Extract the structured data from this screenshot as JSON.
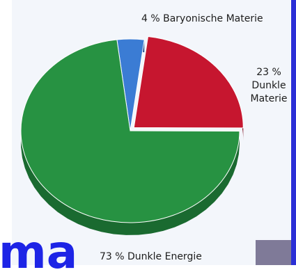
{
  "chart_data": {
    "type": "pie",
    "style": "3d",
    "slices": [
      {
        "label": "Baryonische Materie",
        "value": 4,
        "value_text": "4 %",
        "color": "#3b7cd4",
        "side_color": "#254f8e"
      },
      {
        "label": "Dunkle Materie",
        "value": 23,
        "value_text": "23 %",
        "color": "#c6162f",
        "side_color": "#7d0d1e"
      },
      {
        "label": "Dunkle Energie",
        "value": 73,
        "value_text": "73 %",
        "color": "#279242",
        "side_color": "#1a6a30"
      }
    ]
  },
  "labels": {
    "baryonic": "4 % Baryonische Materie",
    "dark_matter_pct": "23 %",
    "dark_matter_line1": "Dunkle",
    "dark_matter_line2": "Materie",
    "dark_energy": "73 % Dunkle Energie"
  },
  "overlay": {
    "text": "ma"
  }
}
